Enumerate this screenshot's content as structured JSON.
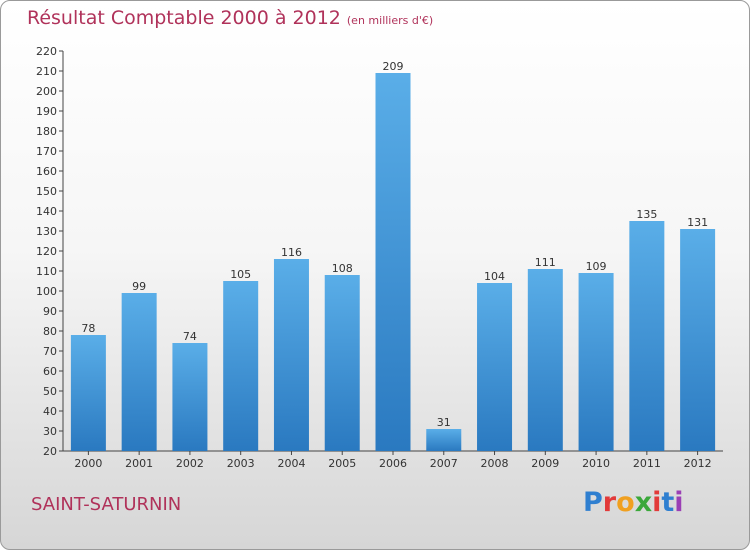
{
  "title": "Résultat Comptable 2000 à 2012",
  "units": "(en milliers d'€)",
  "place": "SAINT-SATURNIN",
  "logo": {
    "letters": [
      "P",
      "r",
      "o",
      "x",
      "i",
      "t",
      "i"
    ],
    "colors": [
      "#2f7fd0",
      "#e23a3a",
      "#f0a020",
      "#3aa83a",
      "#e23a3a",
      "#2f7fd0",
      "#9b3fb5"
    ]
  },
  "colors": {
    "bar": "#4a9de0",
    "bar_dark": "#2a7cc4",
    "accent": "#b0325a"
  },
  "chart_data": {
    "type": "bar",
    "title": "Résultat Comptable 2000 à 2012",
    "xlabel": "",
    "ylabel": "",
    "categories": [
      "2000",
      "2001",
      "2002",
      "2003",
      "2004",
      "2005",
      "2006",
      "2007",
      "2008",
      "2009",
      "2010",
      "2011",
      "2012"
    ],
    "values": [
      78,
      99,
      74,
      105,
      116,
      108,
      209,
      31,
      104,
      111,
      109,
      135,
      131
    ],
    "ylim": [
      20,
      220
    ],
    "yticks": [
      20,
      30,
      40,
      50,
      60,
      70,
      80,
      90,
      100,
      110,
      120,
      130,
      140,
      150,
      160,
      170,
      180,
      190,
      200,
      210,
      220
    ],
    "grid": false
  }
}
